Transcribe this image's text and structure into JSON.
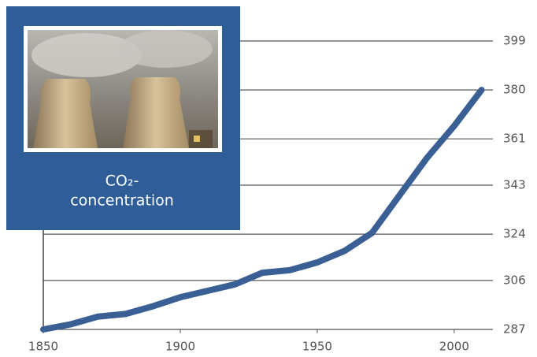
{
  "chart_data": {
    "type": "line",
    "annotation": [
      "CO₂-",
      "concentration"
    ],
    "x": [
      1850,
      1860,
      1870,
      1880,
      1890,
      1900,
      1910,
      1920,
      1930,
      1940,
      1950,
      1960,
      1970,
      1980,
      1990,
      2000,
      2010
    ],
    "series": [
      {
        "color": "#3a5f95",
        "values": [
          287,
          289,
          292,
          293,
          296,
          299.5,
          302,
          304.5,
          309,
          310,
          313,
          317.5,
          324.5,
          339,
          353.5,
          366,
          380
        ]
      }
    ],
    "xlim": [
      1850,
      2015
    ],
    "xticks": [
      1850,
      1900,
      1950,
      2000
    ],
    "ylim": [
      287,
      399
    ],
    "yticks": [
      287,
      306,
      324,
      343,
      361,
      380,
      399
    ],
    "grid": true
  }
}
